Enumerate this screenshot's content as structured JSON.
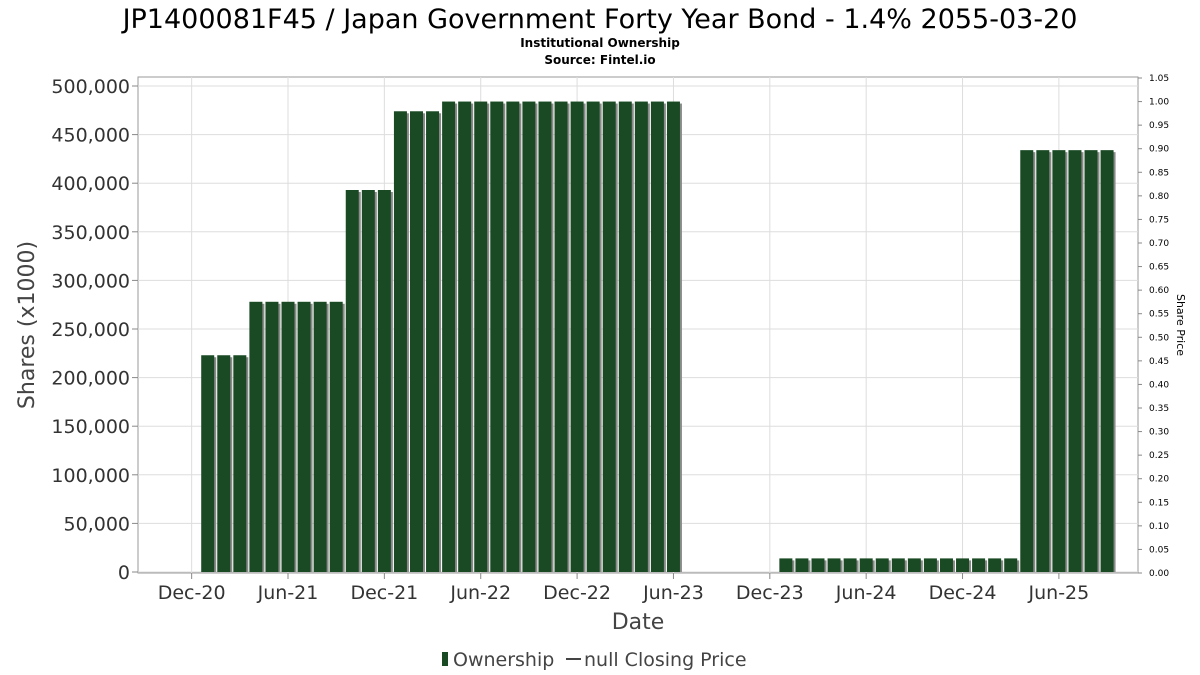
{
  "chart_data": {
    "type": "bar",
    "title": "JP1400081F45 / Japan Government Forty Year Bond - 1.4% 2055-03-20",
    "subtitle_lines": [
      "Institutional Ownership",
      "Source: Fintel.io"
    ],
    "xlabel": "Date",
    "ylabel": "Shares (x1000)",
    "y2label": "Share Price",
    "ylim": [
      0,
      500000
    ],
    "y2lim": [
      0,
      1.05
    ],
    "yticks": [
      "0",
      "50,000",
      "100,000",
      "150,000",
      "200,000",
      "250,000",
      "300,000",
      "350,000",
      "400,000",
      "450,000",
      "500,000"
    ],
    "y2ticks": [
      "0.00",
      "0.05",
      "0.10",
      "0.15",
      "0.20",
      "0.25",
      "0.30",
      "0.35",
      "0.40",
      "0.45",
      "0.50",
      "0.55",
      "0.60",
      "0.65",
      "0.70",
      "0.75",
      "0.80",
      "0.85",
      "0.90",
      "0.95",
      "1.00",
      "1.05"
    ],
    "xticks": [
      "Dec-20",
      "Jun-21",
      "Dec-21",
      "Jun-22",
      "Dec-22",
      "Jun-23",
      "Dec-23",
      "Jun-24",
      "Dec-24",
      "Jun-25"
    ],
    "grid": true,
    "bar_color": "#1a4a24",
    "legend_position": "bottom",
    "legend": [
      "Ownership",
      "null Closing Price"
    ],
    "series": [
      {
        "name": "Ownership",
        "values": [
          null,
          null,
          null,
          223000,
          223000,
          223000,
          278000,
          278000,
          278000,
          278000,
          278000,
          278000,
          393000,
          393000,
          393000,
          474000,
          474000,
          474000,
          484000,
          484000,
          484000,
          484000,
          484000,
          484000,
          484000,
          484000,
          484000,
          484000,
          484000,
          484000,
          484000,
          484000,
          484000,
          null,
          null,
          null,
          null,
          null,
          null,
          14000,
          14000,
          14000,
          14000,
          14000,
          14000,
          14000,
          14000,
          14000,
          14000,
          14000,
          14000,
          14000,
          14000,
          14000,
          434000,
          434000,
          434000,
          434000,
          434000,
          434000,
          null,
          null,
          null
        ]
      }
    ]
  }
}
